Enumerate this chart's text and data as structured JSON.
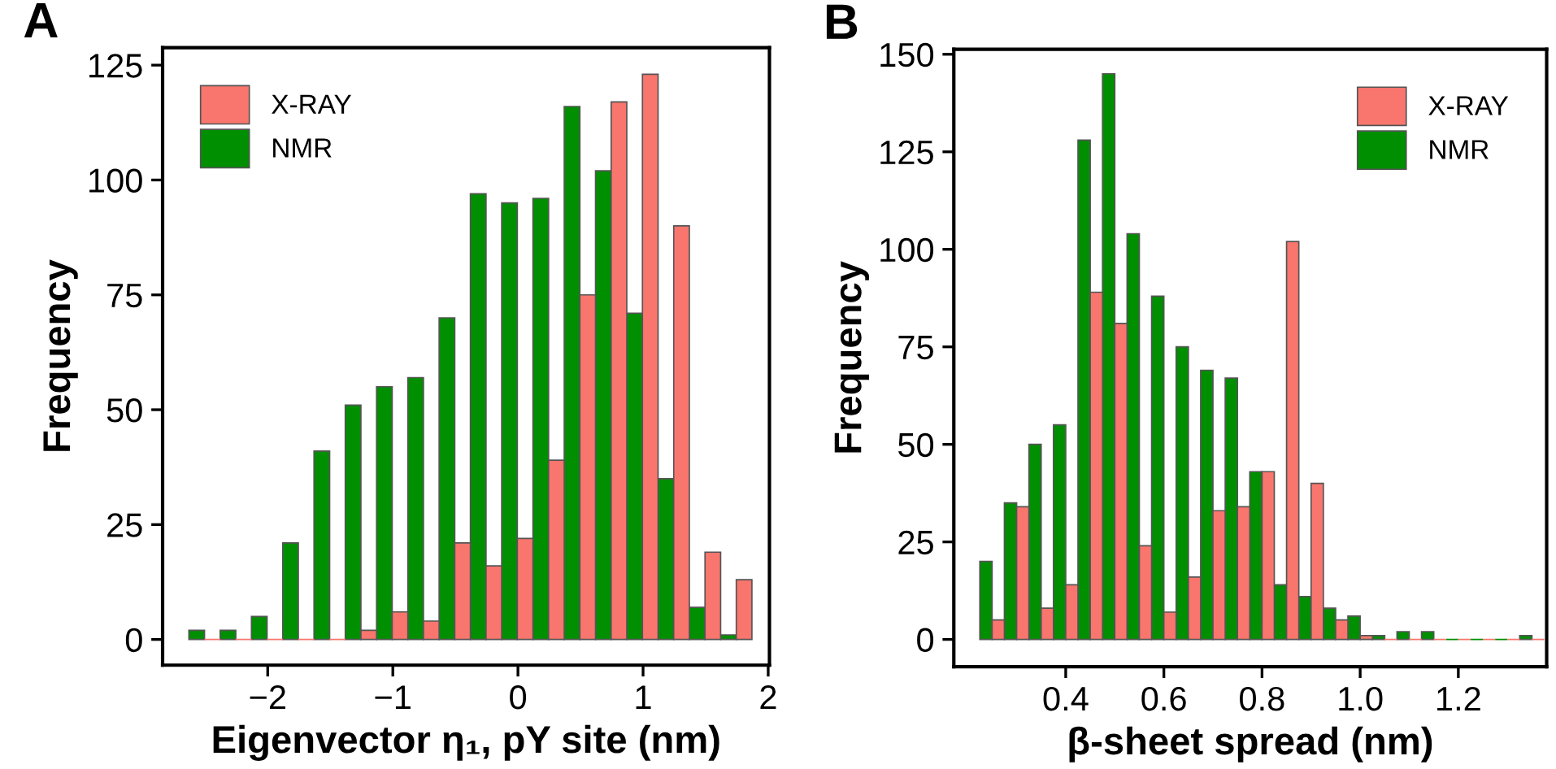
{
  "chart_data": [
    {
      "type": "histogram",
      "title": "A",
      "xlabel": "Eigenvector η₁, pY site (nm)",
      "ylabel": "Frequency",
      "bins": [
        -2.63,
        -2.38,
        -2.13,
        -1.88,
        -1.63,
        -1.38,
        -1.13,
        -0.88,
        -0.63,
        -0.38,
        -0.13,
        0.12,
        0.37,
        0.62,
        0.87,
        1.12,
        1.37,
        1.62,
        1.87
      ],
      "series": [
        {
          "name": "NMR",
          "color": "#008f00",
          "values": [
            2,
            2,
            5,
            21,
            41,
            51,
            55,
            57,
            70,
            97,
            95,
            96,
            116,
            102,
            71,
            35,
            7,
            1
          ]
        },
        {
          "name": "X-RAY",
          "color": "#f8766d",
          "values": [
            0,
            0,
            0,
            0,
            0,
            2,
            6,
            4,
            21,
            16,
            22,
            39,
            75,
            117,
            123,
            90,
            19,
            13
          ]
        }
      ],
      "xlim": [
        -2.84,
        2.01
      ],
      "xticks": [
        {
          "value": -2,
          "label": "−2"
        },
        {
          "value": -1,
          "label": "−1"
        },
        0,
        1,
        2
      ],
      "ylim": [
        -5.6,
        128.8
      ],
      "yticks": [
        0,
        25,
        50,
        75,
        100,
        125
      ],
      "legend": "top left",
      "grid": false
    },
    {
      "type": "histogram",
      "title": "B",
      "xlabel": "β-sheet spread (nm)",
      "ylabel": "Frequency",
      "bins": [
        0.225,
        0.275,
        0.325,
        0.375,
        0.425,
        0.475,
        0.525,
        0.575,
        0.625,
        0.675,
        0.725,
        0.775,
        0.825,
        0.875,
        0.925,
        0.975,
        1.025,
        1.075,
        1.125,
        1.175,
        1.225,
        1.275,
        1.325,
        1.375
      ],
      "series": [
        {
          "name": "NMR",
          "color": "#008f00",
          "values": [
            20,
            35,
            50,
            55,
            128,
            145,
            104,
            88,
            75,
            69,
            67,
            43,
            14,
            11,
            8,
            6,
            1,
            2,
            2,
            0,
            0,
            0,
            1
          ]
        },
        {
          "name": "X-RAY",
          "color": "#f8766d",
          "values": [
            5,
            34,
            8,
            14,
            89,
            81,
            24,
            7,
            16,
            33,
            34,
            43,
            102,
            40,
            5,
            1,
            0,
            0,
            0,
            0,
            0,
            0,
            0
          ]
        }
      ],
      "xlim": [
        0.172,
        1.38
      ],
      "xticks": [
        {
          "value": 0.4,
          "label": "0.4"
        },
        {
          "value": 0.6,
          "label": "0.6"
        },
        {
          "value": 0.8,
          "label": "0.8"
        },
        {
          "value": 1.0,
          "label": "1.0"
        },
        {
          "value": 1.2,
          "label": "1.2"
        }
      ],
      "ylim": [
        -7.0,
        151.3
      ],
      "yticks": [
        0,
        25,
        50,
        75,
        100,
        125,
        150
      ],
      "legend": "top right",
      "grid": false
    }
  ]
}
